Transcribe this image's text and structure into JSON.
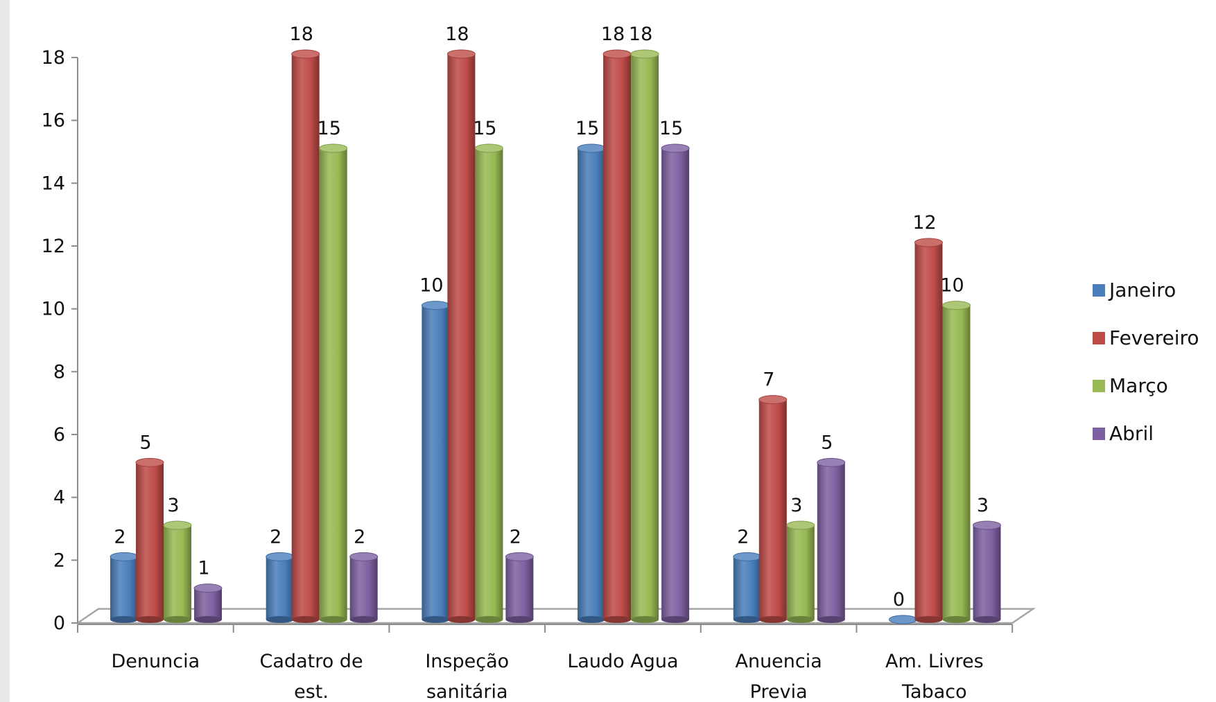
{
  "chart_data": {
    "type": "bar",
    "title": "",
    "xlabel": "",
    "ylabel": "",
    "ylim": [
      0,
      18
    ],
    "yticks": [
      0,
      2,
      4,
      6,
      8,
      10,
      12,
      14,
      16,
      18
    ],
    "grid": false,
    "legend_position": "right",
    "categories": [
      [
        "Denuncia"
      ],
      [
        "Cadatro de",
        "est."
      ],
      [
        "Inspeção",
        "sanitária"
      ],
      [
        "Laudo Agua"
      ],
      [
        "Anuencia",
        "Previa"
      ],
      [
        "Am. Livres",
        "Tabaco"
      ]
    ],
    "series": [
      {
        "name": "Janeiro",
        "color": "#4a7ebb",
        "values": [
          2,
          2,
          10,
          15,
          2,
          0
        ]
      },
      {
        "name": "Fevereiro",
        "color": "#be4b48",
        "values": [
          5,
          18,
          18,
          18,
          7,
          12
        ]
      },
      {
        "name": "Março",
        "color": "#98b954",
        "values": [
          3,
          15,
          15,
          18,
          3,
          10
        ]
      },
      {
        "name": "Abril",
        "color": "#7d60a0",
        "values": [
          1,
          2,
          2,
          15,
          5,
          3
        ]
      }
    ]
  }
}
